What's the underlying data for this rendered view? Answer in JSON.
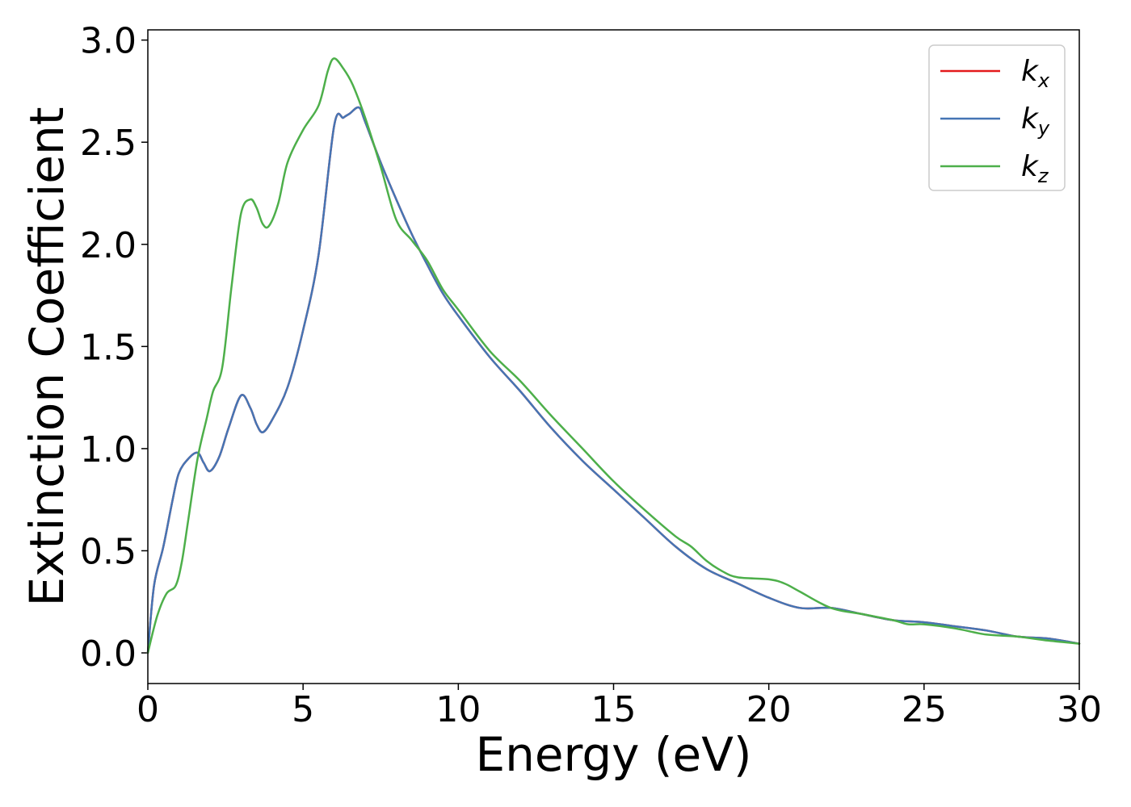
{
  "chart_data": {
    "type": "line",
    "title": "",
    "xlabel": "Energy (eV)",
    "ylabel": "Extinction Coefficient",
    "xlim": [
      0,
      30
    ],
    "ylim": [
      -0.15,
      3.05
    ],
    "xticks": [
      0,
      5,
      10,
      15,
      20,
      25,
      30
    ],
    "xtick_labels": [
      "0",
      "5",
      "10",
      "15",
      "20",
      "25",
      "30"
    ],
    "yticks": [
      0.0,
      0.5,
      1.0,
      1.5,
      2.0,
      2.5,
      3.0
    ],
    "ytick_labels": [
      "0.0",
      "0.5",
      "1.0",
      "1.5",
      "2.0",
      "2.5",
      "3.0"
    ],
    "grid": false,
    "legend_position": "top-right",
    "series": [
      {
        "name": "k",
        "subscript": "x",
        "color": "#e41a1c",
        "x": [
          0,
          0.2,
          0.5,
          0.8,
          1.0,
          1.3,
          1.6,
          1.8,
          2.0,
          2.3,
          2.6,
          3.0,
          3.3,
          3.5,
          3.7,
          4.0,
          4.5,
          5.0,
          5.5,
          6.0,
          6.3,
          6.5,
          6.8,
          7.0,
          7.5,
          8.0,
          8.5,
          9.0,
          9.5,
          10.0,
          11.0,
          12.0,
          13.0,
          14.0,
          15.0,
          16.0,
          17.0,
          18.0,
          19.0,
          20.0,
          21.0,
          22.0,
          23.0,
          24.0,
          25.0,
          26.0,
          27.0,
          28.0,
          29.0,
          30.0
        ],
        "y": [
          0.0,
          0.33,
          0.52,
          0.75,
          0.88,
          0.95,
          0.98,
          0.93,
          0.89,
          0.96,
          1.1,
          1.26,
          1.2,
          1.12,
          1.08,
          1.14,
          1.3,
          1.58,
          1.95,
          2.58,
          2.62,
          2.64,
          2.67,
          2.6,
          2.4,
          2.22,
          2.05,
          1.9,
          1.76,
          1.65,
          1.45,
          1.28,
          1.1,
          0.94,
          0.8,
          0.66,
          0.52,
          0.41,
          0.34,
          0.27,
          0.22,
          0.22,
          0.19,
          0.16,
          0.15,
          0.13,
          0.11,
          0.08,
          0.07,
          0.045
        ]
      },
      {
        "name": "k",
        "subscript": "y",
        "color": "#4575b4",
        "x": [
          0,
          0.2,
          0.5,
          0.8,
          1.0,
          1.3,
          1.6,
          1.8,
          2.0,
          2.3,
          2.6,
          3.0,
          3.3,
          3.5,
          3.7,
          4.0,
          4.5,
          5.0,
          5.5,
          6.0,
          6.3,
          6.5,
          6.8,
          7.0,
          7.5,
          8.0,
          8.5,
          9.0,
          9.5,
          10.0,
          11.0,
          12.0,
          13.0,
          14.0,
          15.0,
          16.0,
          17.0,
          18.0,
          19.0,
          20.0,
          21.0,
          22.0,
          23.0,
          24.0,
          25.0,
          26.0,
          27.0,
          28.0,
          29.0,
          30.0
        ],
        "y": [
          0.0,
          0.33,
          0.52,
          0.75,
          0.88,
          0.95,
          0.98,
          0.93,
          0.89,
          0.96,
          1.1,
          1.26,
          1.2,
          1.12,
          1.08,
          1.14,
          1.3,
          1.58,
          1.95,
          2.58,
          2.62,
          2.64,
          2.67,
          2.6,
          2.4,
          2.22,
          2.05,
          1.9,
          1.76,
          1.65,
          1.45,
          1.28,
          1.1,
          0.94,
          0.8,
          0.66,
          0.52,
          0.41,
          0.34,
          0.27,
          0.22,
          0.22,
          0.19,
          0.16,
          0.15,
          0.13,
          0.11,
          0.08,
          0.07,
          0.045
        ]
      },
      {
        "name": "k",
        "subscript": "z",
        "color": "#4daf4a",
        "x": [
          0,
          0.3,
          0.6,
          0.9,
          1.1,
          1.3,
          1.6,
          1.9,
          2.1,
          2.4,
          2.7,
          3.0,
          3.3,
          3.5,
          3.7,
          3.9,
          4.2,
          4.5,
          5.0,
          5.5,
          5.8,
          6.0,
          6.3,
          6.6,
          7.0,
          7.5,
          8.0,
          8.5,
          9.0,
          9.5,
          10.0,
          11.0,
          12.0,
          13.0,
          14.0,
          15.0,
          16.0,
          17.0,
          17.5,
          18.0,
          18.5,
          19.0,
          20.0,
          20.5,
          21.0,
          22.0,
          23.0,
          24.0,
          24.5,
          25.0,
          26.0,
          27.0,
          28.0,
          29.0,
          30.0
        ],
        "y": [
          0.0,
          0.18,
          0.29,
          0.33,
          0.45,
          0.65,
          0.95,
          1.15,
          1.28,
          1.4,
          1.8,
          2.15,
          2.22,
          2.18,
          2.1,
          2.09,
          2.2,
          2.4,
          2.56,
          2.68,
          2.85,
          2.91,
          2.86,
          2.78,
          2.62,
          2.38,
          2.12,
          2.02,
          1.92,
          1.78,
          1.68,
          1.48,
          1.33,
          1.16,
          1.0,
          0.84,
          0.7,
          0.57,
          0.52,
          0.45,
          0.4,
          0.37,
          0.36,
          0.34,
          0.3,
          0.22,
          0.19,
          0.16,
          0.14,
          0.14,
          0.12,
          0.09,
          0.08,
          0.06,
          0.045
        ]
      }
    ]
  }
}
